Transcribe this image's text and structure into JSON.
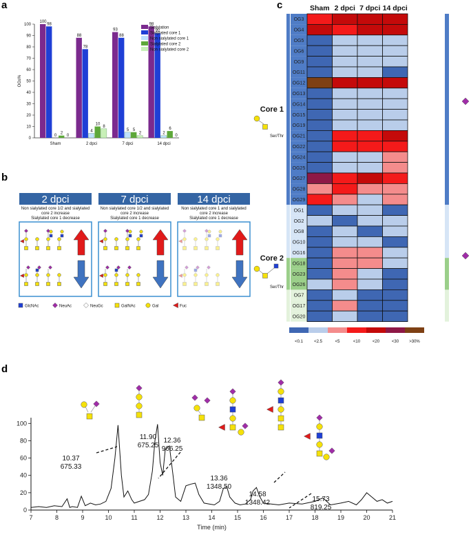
{
  "panels": {
    "a": "a",
    "b": "b",
    "c": "c",
    "d": "d"
  },
  "colors": {
    "sialylation": "#7b2a8e",
    "sialylated_core1": "#1f3fd6",
    "non_sialylated_core1": "#bfe0ff",
    "sialylated_core2": "#5ea83a",
    "non_sialylated_core2": "#c8f0b8",
    "banner": "#3465a4",
    "scale": [
      "#3f67b3",
      "#b9cdea",
      "#f48c8c",
      "#f41a1a",
      "#c40a0a",
      "#8e1846",
      "#7e4014"
    ]
  },
  "chart_data": [
    {
      "type": "bar",
      "panel": "a",
      "ylabel": "OGs%",
      "ylim": [
        0,
        100
      ],
      "yticks": [
        0,
        10,
        20,
        30,
        40,
        50,
        60,
        70,
        80,
        90,
        100
      ],
      "categories": [
        "Sham",
        "2 dpci",
        "7 dpci",
        "14 dpci"
      ],
      "legend_position": "top-right",
      "series": [
        {
          "name": "Sialylation",
          "values": [
            100,
            88,
            93,
            98
          ],
          "labels": [
            "100",
            "88",
            "93",
            "98"
          ]
        },
        {
          "name": "Sialylated core 1",
          "values": [
            98,
            78,
            88,
            92
          ],
          "labels": [
            "98",
            "78",
            "88",
            "92"
          ]
        },
        {
          "name": "Non sialylated core 1",
          "values": [
            0,
            4,
            5,
            2
          ],
          "labels": [
            "0",
            "4",
            "5",
            "2"
          ]
        },
        {
          "name": "Sialylated core 2",
          "values": [
            2,
            10,
            5,
            6
          ],
          "labels": [
            "2",
            "10",
            "5",
            "6"
          ]
        },
        {
          "name": "Non sialylated core 2",
          "values": [
            0,
            8,
            2,
            0
          ],
          "labels": [
            "0",
            "8",
            "2",
            "0"
          ]
        }
      ]
    },
    {
      "type": "heatmap",
      "panel": "c",
      "columns": [
        "Sham",
        "2 dpci",
        "7 dpci",
        "14 dpci"
      ],
      "rows": [
        "OG3",
        "OG4",
        "OG5",
        "OG6",
        "OG9",
        "OG11",
        "OG12",
        "OG13",
        "OG14",
        "OG15",
        "OG19",
        "OG21",
        "OG22",
        "OG24",
        "OG25",
        "OG27",
        "OG28",
        "OG29",
        "OG1",
        "OG2",
        "OG8",
        "OG10",
        "OG16",
        "OG18",
        "OG23",
        "OG26",
        "OG7",
        "OG17",
        "OG20"
      ],
      "levels": [
        "<0.1",
        "<2.5",
        "<5",
        "<10",
        "<20",
        "<30",
        ">30%"
      ],
      "cells": [
        [
          3,
          4,
          4,
          4
        ],
        [
          4,
          3,
          4,
          4
        ],
        [
          0,
          1,
          1,
          1
        ],
        [
          0,
          1,
          1,
          1
        ],
        [
          0,
          1,
          1,
          1
        ],
        [
          0,
          1,
          1,
          0
        ],
        [
          6,
          4,
          4,
          4
        ],
        [
          0,
          1,
          1,
          1
        ],
        [
          0,
          1,
          1,
          1
        ],
        [
          0,
          1,
          1,
          1
        ],
        [
          0,
          1,
          1,
          1
        ],
        [
          0,
          3,
          3,
          4
        ],
        [
          0,
          3,
          3,
          3
        ],
        [
          0,
          1,
          1,
          2
        ],
        [
          0,
          1,
          1,
          2
        ],
        [
          5,
          3,
          4,
          3
        ],
        [
          2,
          3,
          2,
          2
        ],
        [
          3,
          2,
          1,
          2
        ],
        [
          0,
          1,
          1,
          0
        ],
        [
          1,
          0,
          1,
          1
        ],
        [
          0,
          1,
          0,
          1
        ],
        [
          0,
          1,
          1,
          0
        ],
        [
          0,
          2,
          2,
          1
        ],
        [
          0,
          2,
          2,
          1
        ],
        [
          0,
          2,
          1,
          0
        ],
        [
          1,
          2,
          1,
          0
        ],
        [
          0,
          1,
          0,
          0
        ],
        [
          0,
          2,
          0,
          0
        ],
        [
          0,
          1,
          0,
          0
        ]
      ],
      "groups": [
        {
          "label": "Core 1",
          "rows_from": 0,
          "rows_to": 22
        },
        {
          "label": "Core 2",
          "rows_from": 23,
          "rows_to": 28
        }
      ]
    },
    {
      "type": "line",
      "panel": "d",
      "xlabel": "Time (min)",
      "xlim": [
        7,
        21
      ],
      "ylim": [
        0,
        105
      ],
      "xticks": [
        7,
        8,
        9,
        10,
        11,
        12,
        13,
        14,
        15,
        16,
        17,
        18,
        19,
        20,
        21
      ],
      "yticks": [
        0,
        20,
        40,
        60,
        80,
        100
      ],
      "x": [
        7.0,
        7.3,
        7.6,
        7.9,
        8.2,
        8.4,
        8.5,
        8.6,
        8.8,
        8.95,
        9.1,
        9.3,
        9.5,
        9.7,
        9.9,
        10.1,
        10.25,
        10.37,
        10.5,
        10.6,
        10.75,
        10.9,
        11.0,
        11.2,
        11.4,
        11.55,
        11.7,
        11.8,
        11.9,
        12.0,
        12.1,
        12.2,
        12.36,
        12.5,
        12.6,
        12.8,
        13.0,
        13.2,
        13.36,
        13.5,
        13.7,
        13.9,
        14.1,
        14.3,
        14.45,
        14.58,
        14.7,
        14.9,
        15.1,
        15.3,
        15.5,
        15.6,
        15.73,
        15.85,
        16.0,
        16.3,
        16.6,
        17.0,
        17.5,
        18.0,
        18.3,
        18.6,
        19.0,
        19.3,
        19.6,
        19.8,
        20.0,
        20.2,
        20.4,
        20.6,
        20.8,
        21.0
      ],
      "y": [
        3,
        4,
        3,
        5,
        4,
        13,
        3,
        4,
        3,
        16,
        5,
        8,
        6,
        7,
        10,
        25,
        60,
        98,
        40,
        15,
        22,
        12,
        8,
        10,
        12,
        18,
        45,
        80,
        99,
        55,
        40,
        70,
        74,
        40,
        15,
        10,
        28,
        30,
        31,
        18,
        8,
        7,
        6,
        10,
        25,
        27,
        15,
        8,
        6,
        7,
        12,
        22,
        26,
        16,
        8,
        7,
        6,
        8,
        7,
        10,
        14,
        6,
        8,
        10,
        6,
        12,
        20,
        15,
        10,
        12,
        8,
        10
      ],
      "peaks": [
        {
          "time": "10.37",
          "mass": "675.33"
        },
        {
          "time": "11.90",
          "mass": "675.25"
        },
        {
          "time": "12.36",
          "mass": "966.25"
        },
        {
          "time": "13.36",
          "mass": "1348.50"
        },
        {
          "time": "14.58",
          "mass": "1348.42"
        },
        {
          "time": "15.73",
          "mass": "819.25"
        }
      ]
    }
  ],
  "panel_b": {
    "cards": [
      {
        "title": "2 dpci",
        "note_lines": [
          "Non sialylated core 1/2 and sialylated",
          "core 2 increase",
          "Sialylated core 1 decrease"
        ]
      },
      {
        "title": "7 dpci",
        "note_lines": [
          "Non sialylated core 1/2 and sialylated",
          "core 2 increase",
          "Sialylated core 1 decrease"
        ]
      },
      {
        "title": "14 dpci",
        "note_lines": [
          "Non sialylated core 1 and sialylated",
          "core 2 increase",
          "Sialylated core 1 decrease"
        ]
      }
    ],
    "legend": [
      {
        "icon": "square-icon",
        "label": "GlcNAc",
        "color": "#1f3fd6"
      },
      {
        "icon": "diamond-icon",
        "label": "NeuAc",
        "color": "#a02ca8"
      },
      {
        "icon": "diamond-icon",
        "label": "NeuGc",
        "color": "#ffffff"
      },
      {
        "icon": "square-icon",
        "label": "GalNAc",
        "color": "#f5e10a"
      },
      {
        "icon": "circle-icon",
        "label": "Gal",
        "color": "#f5e10a"
      },
      {
        "icon": "triangle-icon",
        "label": "Fuc",
        "color": "#e11a1a"
      }
    ]
  },
  "panel_c": {
    "structure_label": "Ser/Thr"
  }
}
